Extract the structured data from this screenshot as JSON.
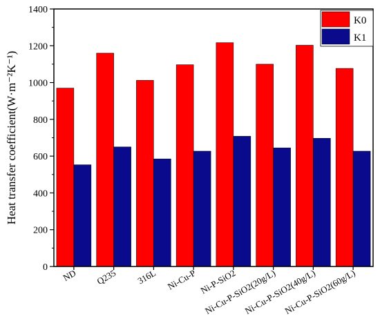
{
  "chart_data": {
    "type": "bar",
    "title": "",
    "xlabel": "",
    "ylabel": "Heat transfer coefficient(W·m⁻²K⁻¹)",
    "ylim": [
      0,
      1400
    ],
    "yticks": [
      0,
      200,
      400,
      600,
      800,
      1000,
      1200,
      1400
    ],
    "grid": false,
    "legend_position": "top-right",
    "categories": [
      "ND",
      "Q235",
      "316L",
      "Ni-Cu-P",
      "Ni-P-SiO2",
      "Ni-Cu-P-SiO2(20g/L)",
      "Ni-Cu-P-SiO2(40g/L)",
      "Ni-Cu-P-SiO2(60g/L)"
    ],
    "series": [
      {
        "name": "K0",
        "color": "#ff0000",
        "values": [
          970,
          1160,
          1012,
          1097,
          1217,
          1100,
          1203,
          1077
        ]
      },
      {
        "name": "K1",
        "color": "#0a0a8c",
        "values": [
          553,
          650,
          585,
          627,
          708,
          645,
          697,
          627
        ]
      }
    ]
  }
}
